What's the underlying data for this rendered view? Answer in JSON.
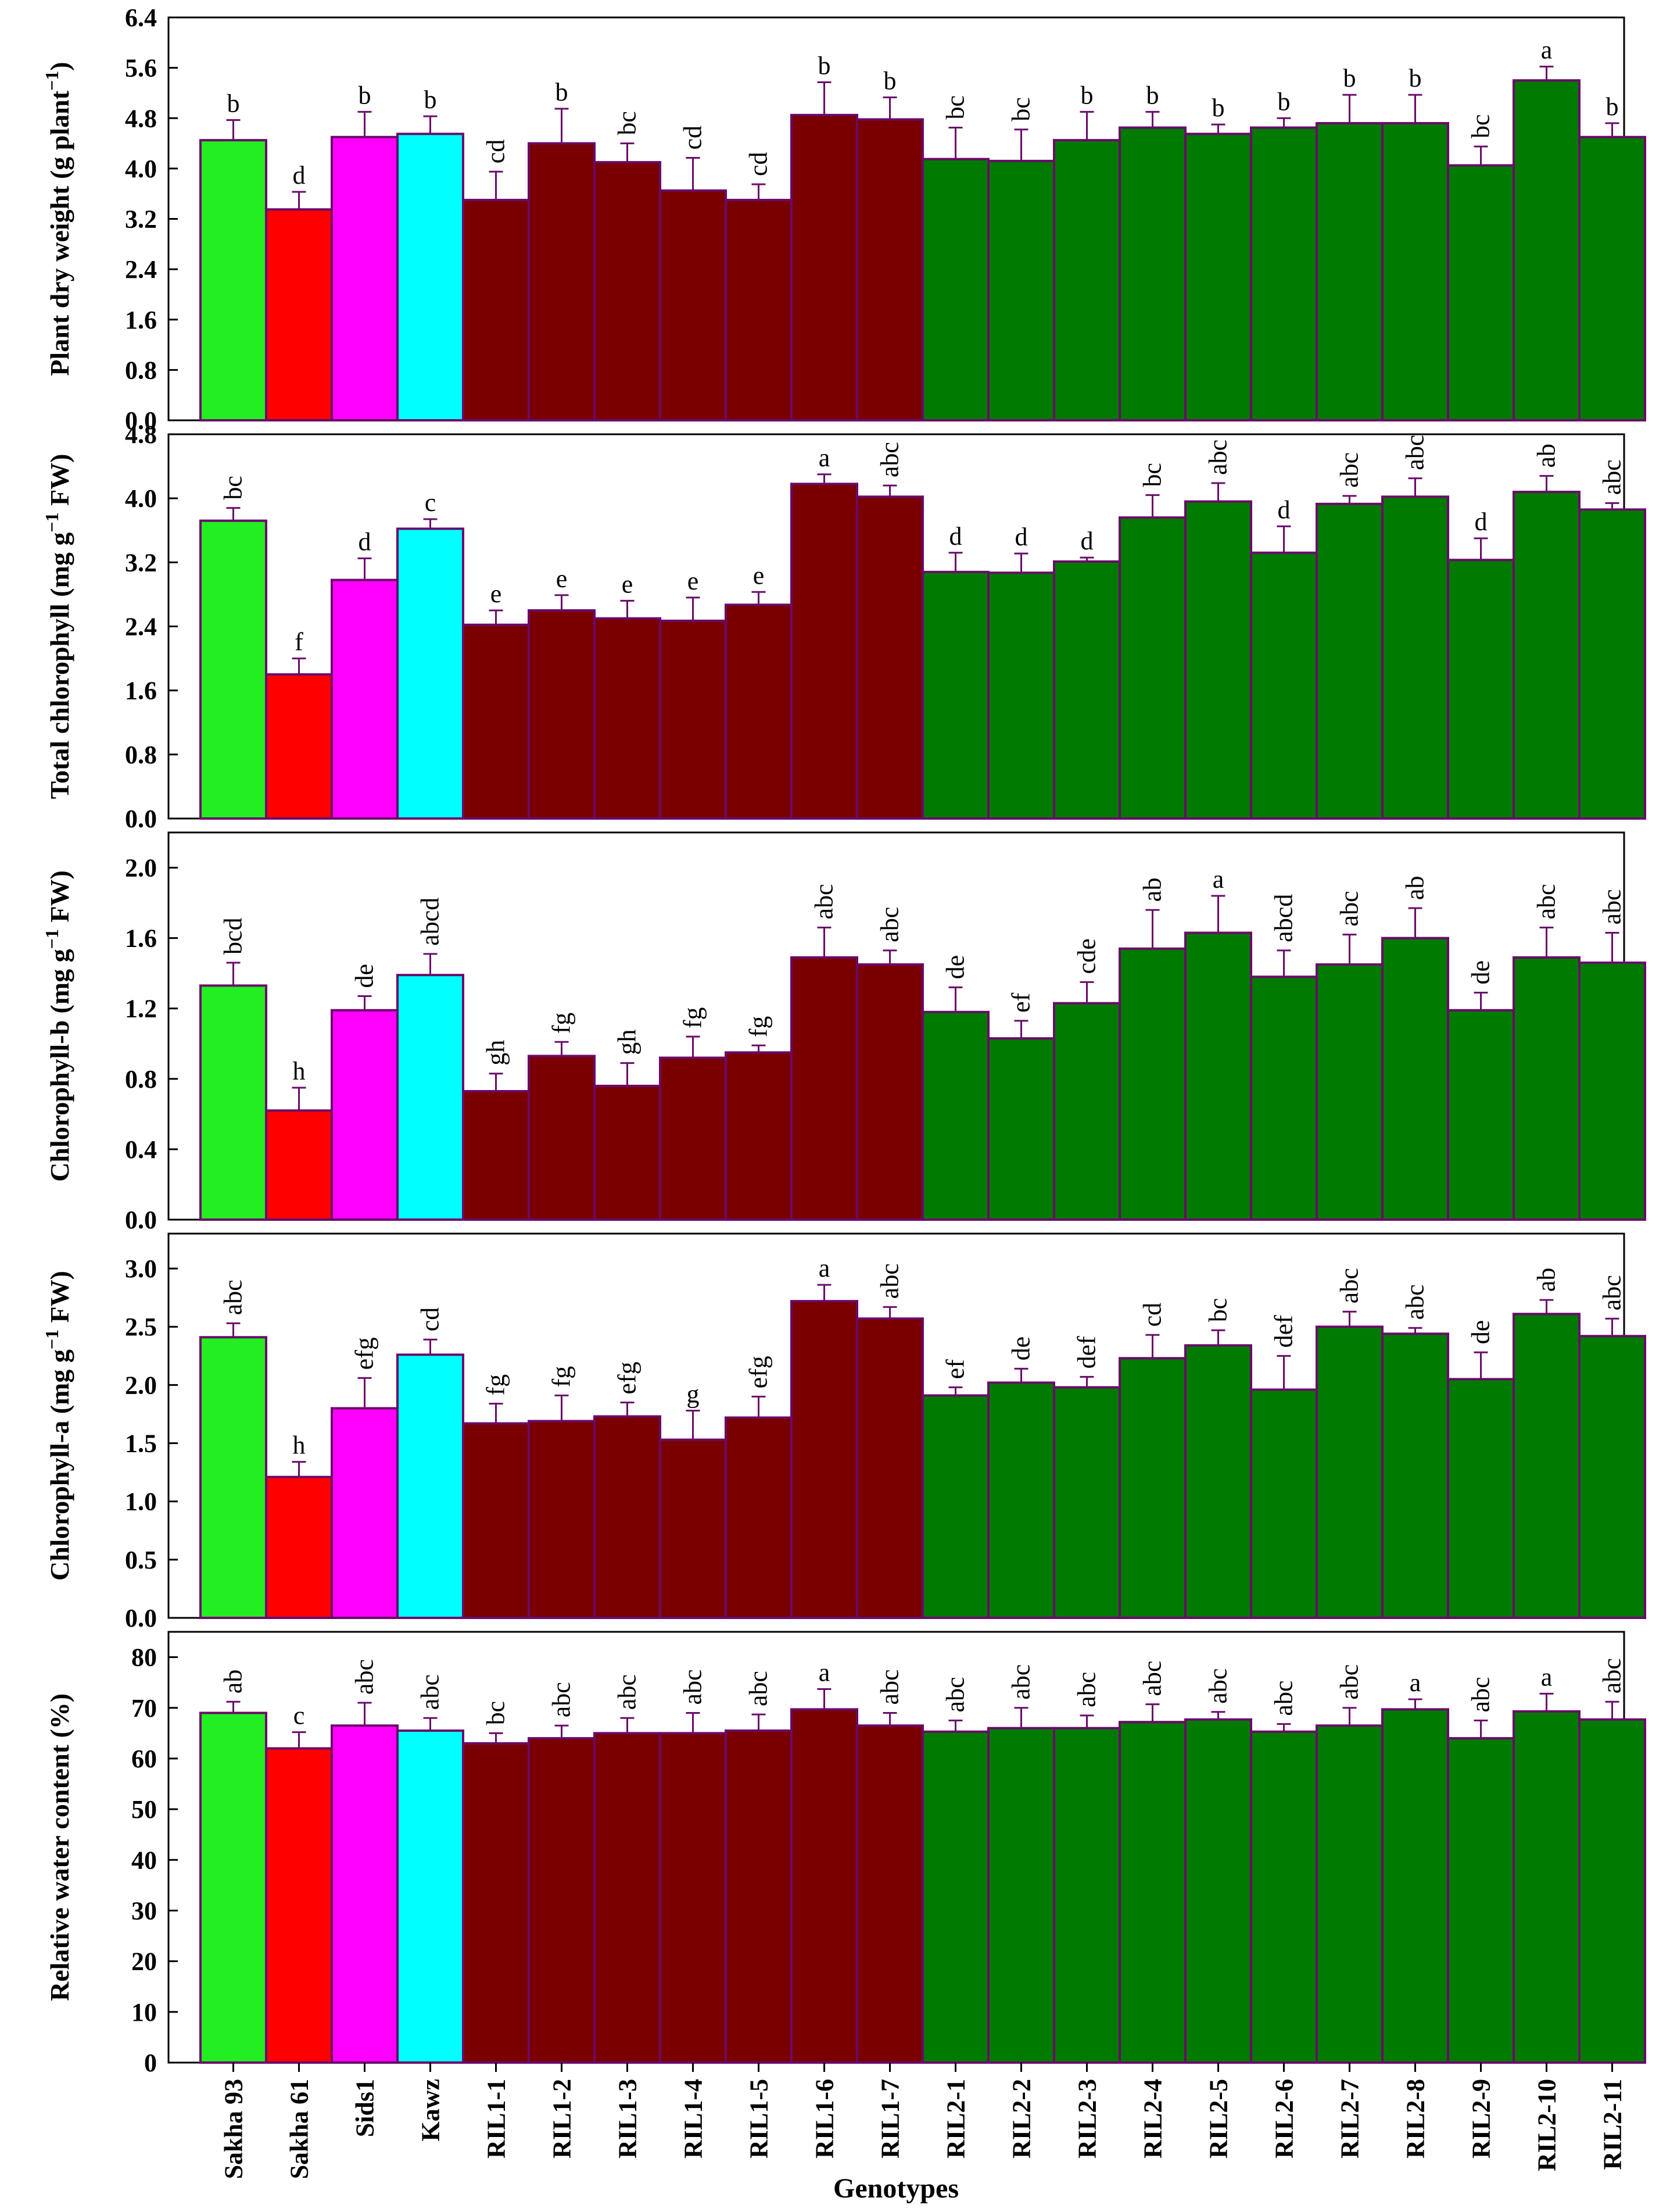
{
  "chart_data": {
    "type": "bar",
    "categories": [
      "Sakha 93",
      "Sakha 61",
      "Sids1",
      "Kawz",
      "RIL1-1",
      "RIL1-2",
      "RIL1-3",
      "RIL1-4",
      "RIL1-5",
      "RIL1-6",
      "RIL1-7",
      "RIL2-1",
      "RIL2-2",
      "RIL2-3",
      "RIL2-4",
      "RIL2-5",
      "RIL2-6",
      "RIL2-7",
      "RIL2-8",
      "RIL2-9",
      "RIL2-10",
      "RIL2-11"
    ],
    "bar_colors": [
      "#22ee22",
      "#ff0000",
      "#ff00ff",
      "#00ffff",
      "#7a0000",
      "#7a0000",
      "#7a0000",
      "#7a0000",
      "#7a0000",
      "#7a0000",
      "#7a0000",
      "#007a00",
      "#007a00",
      "#007a00",
      "#007a00",
      "#007a00",
      "#007a00",
      "#007a00",
      "#007a00",
      "#007a00",
      "#007a00",
      "#007a00"
    ],
    "bar_edge_color": "#6a0a6a",
    "xlabel": "Genotypes",
    "panels": [
      {
        "ylabel": "Plant dry weight (g plant",
        "ylabel_sup": "−1",
        "ylabel_tail": ")",
        "ylim": [
          0,
          6.4
        ],
        "yticks": [
          "0.0",
          "0.8",
          "1.6",
          "2.4",
          "3.2",
          "4.0",
          "4.8",
          "5.6",
          "6.4"
        ],
        "ytick_values": [
          0,
          0.8,
          1.6,
          2.4,
          3.2,
          4.0,
          4.8,
          5.6,
          6.4
        ],
        "values": [
          4.45,
          3.35,
          4.5,
          4.55,
          3.5,
          4.4,
          4.1,
          3.65,
          3.5,
          4.85,
          4.78,
          4.15,
          4.12,
          4.45,
          4.65,
          4.55,
          4.65,
          4.72,
          4.72,
          4.05,
          5.4,
          4.5
        ],
        "errors": [
          0.32,
          0.28,
          0.4,
          0.28,
          0.45,
          0.55,
          0.3,
          0.52,
          0.25,
          0.52,
          0.35,
          0.5,
          0.5,
          0.45,
          0.25,
          0.15,
          0.15,
          0.45,
          0.45,
          0.3,
          0.22,
          0.22
        ],
        "labels": [
          "b",
          "d",
          "b",
          "b",
          "cd",
          "b",
          "bc",
          "cd",
          "cd",
          "b",
          "b",
          "bc",
          "bc",
          "b",
          "b",
          "b",
          "b",
          "b",
          "b",
          "bc",
          "a",
          "b"
        ]
      },
      {
        "ylabel": "Total chlorophyll (mg g",
        "ylabel_sup": "−1",
        "ylabel_tail": " FW)",
        "ylim": [
          0,
          4.8
        ],
        "yticks": [
          "0.0",
          "0.8",
          "1.6",
          "2.4",
          "3.2",
          "4.0",
          "4.8"
        ],
        "ytick_values": [
          0,
          0.8,
          1.6,
          2.4,
          3.2,
          4.0,
          4.8
        ],
        "values": [
          3.72,
          1.8,
          2.98,
          3.62,
          2.42,
          2.6,
          2.5,
          2.47,
          2.67,
          4.18,
          4.02,
          3.08,
          3.07,
          3.21,
          3.76,
          3.96,
          3.32,
          3.93,
          4.02,
          3.23,
          4.08,
          3.86
        ],
        "errors": [
          0.16,
          0.2,
          0.27,
          0.12,
          0.18,
          0.19,
          0.22,
          0.29,
          0.16,
          0.12,
          0.14,
          0.24,
          0.24,
          0.05,
          0.28,
          0.23,
          0.33,
          0.1,
          0.23,
          0.27,
          0.2,
          0.08
        ],
        "labels": [
          "bc",
          "f",
          "d",
          "c",
          "e",
          "e",
          "e",
          "e",
          "e",
          "a",
          "abc",
          "d",
          "d",
          "d",
          "bc",
          "abc",
          "d",
          "abc",
          "abc",
          "d",
          "ab",
          "abc"
        ]
      },
      {
        "ylabel": "Chlorophyll-b (mg g",
        "ylabel_sup": "−1",
        "ylabel_tail": " FW)",
        "ylim": [
          0,
          2.2
        ],
        "yticks": [
          "0.0",
          "0.4",
          "0.8",
          "1.2",
          "1.6",
          "2.0"
        ],
        "ytick_values": [
          0,
          0.4,
          0.8,
          1.2,
          1.6,
          2.0
        ],
        "values": [
          1.33,
          0.62,
          1.19,
          1.39,
          0.73,
          0.93,
          0.76,
          0.92,
          0.95,
          1.49,
          1.45,
          1.18,
          1.03,
          1.23,
          1.54,
          1.63,
          1.38,
          1.45,
          1.6,
          1.19,
          1.49,
          1.46
        ],
        "errors": [
          0.13,
          0.13,
          0.08,
          0.12,
          0.1,
          0.08,
          0.13,
          0.12,
          0.04,
          0.17,
          0.08,
          0.14,
          0.1,
          0.12,
          0.22,
          0.21,
          0.15,
          0.17,
          0.17,
          0.1,
          0.17,
          0.17
        ],
        "labels": [
          "bcd",
          "h",
          "de",
          "abcd",
          "gh",
          "fg",
          "gh",
          "fg",
          "fg",
          "abc",
          "abc",
          "de",
          "ef",
          "cde",
          "ab",
          "a",
          "abcd",
          "abc",
          "ab",
          "de",
          "abc",
          "abc"
        ]
      },
      {
        "ylabel": "Chlorophyll-a (mg g",
        "ylabel_sup": "−1",
        "ylabel_tail": " FW)",
        "ylim": [
          0,
          3.3
        ],
        "yticks": [
          "0.0",
          "0.5",
          "1.0",
          "1.5",
          "2.0",
          "2.5",
          "3.0"
        ],
        "ytick_values": [
          0,
          0.5,
          1.0,
          1.5,
          2.0,
          2.5,
          3.0
        ],
        "values": [
          2.41,
          1.21,
          1.8,
          2.26,
          1.67,
          1.69,
          1.73,
          1.53,
          1.72,
          2.72,
          2.57,
          1.91,
          2.02,
          1.98,
          2.23,
          2.34,
          1.96,
          2.5,
          2.44,
          2.05,
          2.61,
          2.42
        ],
        "errors": [
          0.12,
          0.13,
          0.26,
          0.13,
          0.17,
          0.22,
          0.12,
          0.25,
          0.18,
          0.14,
          0.1,
          0.07,
          0.12,
          0.09,
          0.2,
          0.13,
          0.29,
          0.13,
          0.05,
          0.23,
          0.12,
          0.15
        ],
        "labels": [
          "abc",
          "h",
          "efg",
          "cd",
          "fg",
          "fg",
          "efg",
          "g",
          "efg",
          "a",
          "abc",
          "ef",
          "de",
          "def",
          "cd",
          "bc",
          "def",
          "abc",
          "abc",
          "de",
          "ab",
          "abc"
        ]
      },
      {
        "ylabel": "Relative water content (%)",
        "ylabel_sup": "",
        "ylabel_tail": "",
        "ylim": [
          0,
          85
        ],
        "yticks": [
          "0",
          "10",
          "20",
          "30",
          "40",
          "50",
          "60",
          "70",
          "80"
        ],
        "ytick_values": [
          0,
          10,
          20,
          30,
          40,
          50,
          60,
          70,
          80
        ],
        "values": [
          69,
          62,
          66.5,
          65.5,
          63,
          64,
          65,
          65,
          65.5,
          69.7,
          66.5,
          65.3,
          66,
          66,
          67.2,
          67.7,
          65.3,
          66.5,
          69.7,
          64,
          69.3,
          67.7
        ],
        "errors": [
          2.2,
          3.2,
          4.5,
          2.5,
          2,
          2.5,
          3,
          4,
          3.2,
          4,
          2.5,
          2.2,
          4,
          2.5,
          3.5,
          1.5,
          1.5,
          3.5,
          2,
          3.5,
          3.5,
          3.5
        ],
        "labels": [
          "ab",
          "c",
          "abc",
          "abc",
          "bc",
          "abc",
          "abc",
          "abc",
          "abc",
          "a",
          "abc",
          "abc",
          "abc",
          "abc",
          "abc",
          "abc",
          "abc",
          "abc",
          "a",
          "abc",
          "a",
          "abc"
        ]
      }
    ]
  }
}
